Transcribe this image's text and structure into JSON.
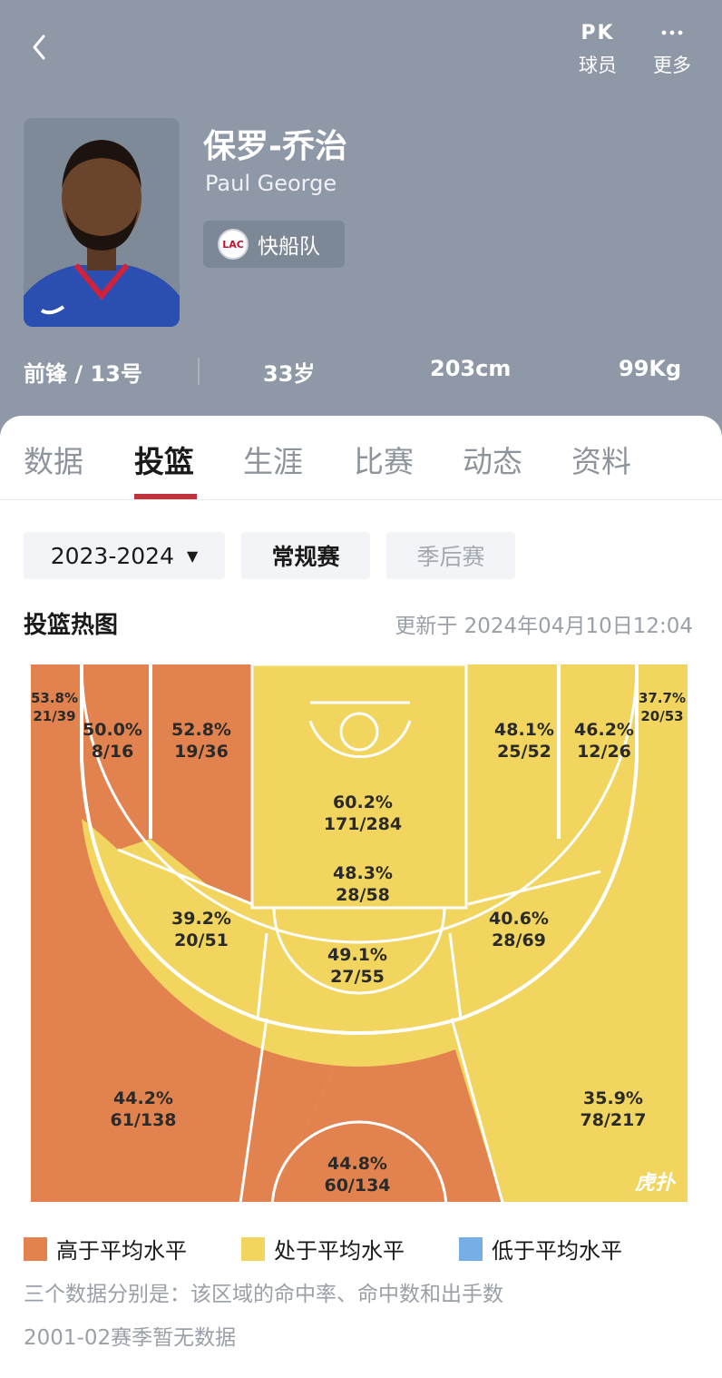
{
  "colors": {
    "header_bg": "#8e98a6",
    "above_avg": "#e2834f",
    "avg": "#f1d55e",
    "below_avg": "#76aee6",
    "court_line": "#ffffff",
    "tab_indicator": "#c0343f"
  },
  "top_bar": {
    "back_icon": "chevron-left-icon",
    "pk_icon_text": "PK",
    "pk_label": "球员",
    "more_icon": "ellipsis-icon",
    "more_label": "更多"
  },
  "player": {
    "name_cn": "保罗-乔治",
    "name_en": "Paul George",
    "team_logo_text": "LAC",
    "team": "快船队",
    "position_number": "前锋 / 13号",
    "age": "33岁",
    "height": "203cm",
    "weight": "99Kg"
  },
  "tabs": [
    {
      "label": "数据",
      "active": false
    },
    {
      "label": "投篮",
      "active": true
    },
    {
      "label": "生涯",
      "active": false
    },
    {
      "label": "比赛",
      "active": false
    },
    {
      "label": "动态",
      "active": false
    },
    {
      "label": "资料",
      "active": false
    }
  ],
  "filters": {
    "season": "2023-2024",
    "season_caret": "▼",
    "regular": "常规赛",
    "playoff": "季后赛"
  },
  "heatmap": {
    "title": "投篮热图",
    "updated": "更新于 2024年04月10日12:04",
    "watermark": "虎扑",
    "zones": [
      {
        "id": "left-corner-three",
        "pct": "53.8%",
        "made_att": "21/39",
        "level": "above"
      },
      {
        "id": "left-baseline-long-two",
        "pct": "50.0%",
        "made_att": "8/16",
        "level": "above"
      },
      {
        "id": "left-short-midrange",
        "pct": "52.8%",
        "made_att": "19/36",
        "level": "above"
      },
      {
        "id": "restricted-area",
        "pct": "60.2%",
        "made_att": "171/284",
        "level": "avg"
      },
      {
        "id": "paint-non-ra",
        "pct": "48.3%",
        "made_att": "28/58",
        "level": "avg"
      },
      {
        "id": "right-short-midrange",
        "pct": "48.1%",
        "made_att": "25/52",
        "level": "avg"
      },
      {
        "id": "right-baseline-long-two",
        "pct": "46.2%",
        "made_att": "12/26",
        "level": "avg"
      },
      {
        "id": "right-corner-three",
        "pct": "37.7%",
        "made_att": "20/53",
        "level": "avg"
      },
      {
        "id": "left-wing-long-two",
        "pct": "39.2%",
        "made_att": "20/51",
        "level": "avg"
      },
      {
        "id": "top-key-long-two",
        "pct": "49.1%",
        "made_att": "27/55",
        "level": "avg"
      },
      {
        "id": "right-wing-long-two",
        "pct": "40.6%",
        "made_att": "28/69",
        "level": "avg"
      },
      {
        "id": "left-wing-three",
        "pct": "44.2%",
        "made_att": "61/138",
        "level": "above"
      },
      {
        "id": "top-key-three",
        "pct": "44.8%",
        "made_att": "60/134",
        "level": "above"
      },
      {
        "id": "right-wing-three",
        "pct": "35.9%",
        "made_att": "78/217",
        "level": "avg"
      }
    ]
  },
  "legend": {
    "above": "高于平均水平",
    "avg": "处于平均水平",
    "below": "低于平均水平"
  },
  "notes": {
    "line1": "三个数据分别是：该区域的命中率、命中数和出手数",
    "line2": "2001-02赛季暂无数据"
  }
}
